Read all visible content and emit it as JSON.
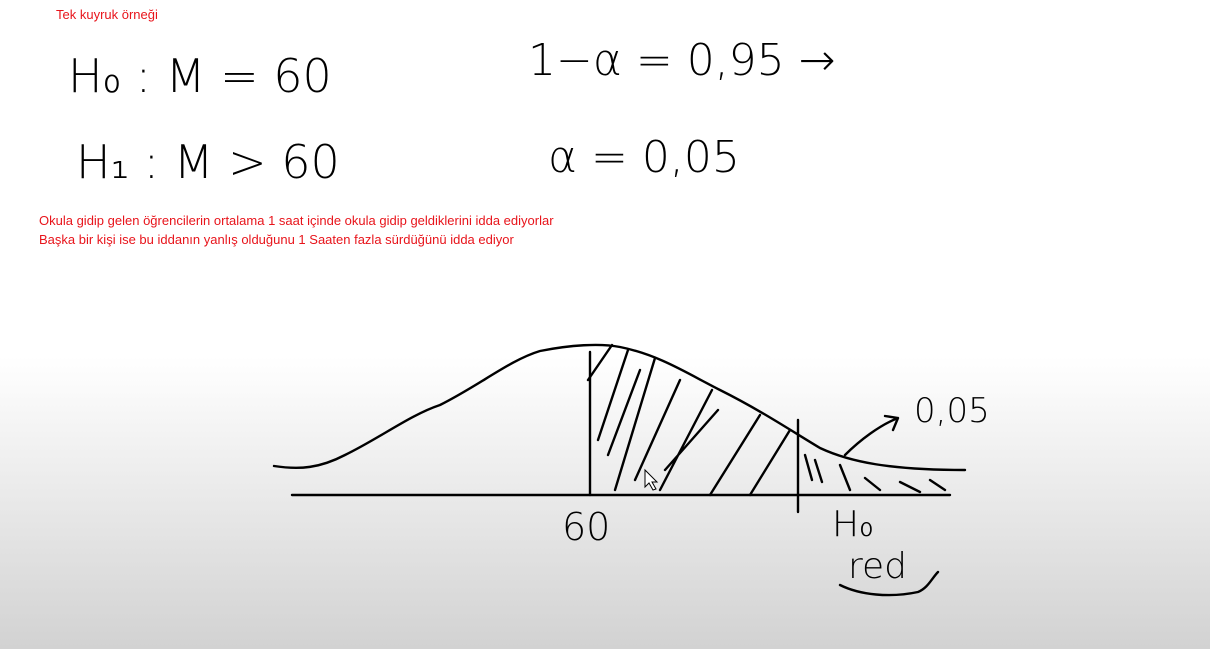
{
  "header": {
    "title": "Tek kuyruk örneği"
  },
  "hypotheses": {
    "null": "H₀ : M = 60",
    "alternative": "H₁ : M > 60"
  },
  "confidence": {
    "level": "1−α = 0,95 →",
    "alpha": "α = 0,05"
  },
  "description": [
    "Okula gidip gelen öğrencilerin ortalama 1 saat içinde okula gidip geldiklerini idda ediyorlar",
    "Başka bir kişi ise bu iddanın yanlış olduğunu 1 Saaten fazla sürdüğünü idda ediyor"
  ],
  "sketch": {
    "mean_label": "60",
    "tail_label": "0,05",
    "reject_label": "H₀",
    "reject_word": "red"
  }
}
